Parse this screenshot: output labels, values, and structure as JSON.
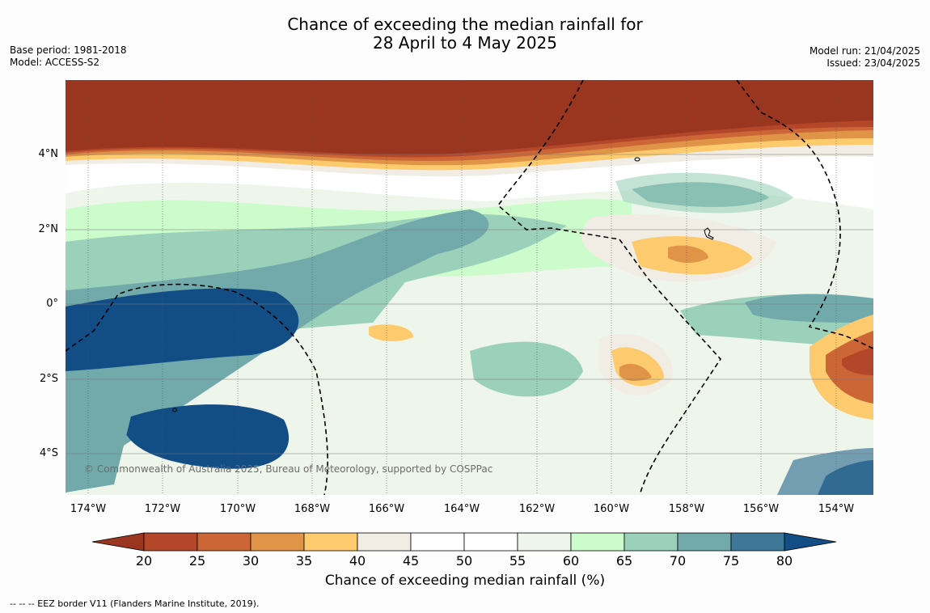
{
  "title": {
    "line1": "Chance of exceeding the median rainfall for",
    "line2": "28 April to 4 May 2025"
  },
  "meta": {
    "base_period": "Base period: 1981-2018",
    "model": "Model: ACCESS-S2",
    "model_run": "Model run: 21/04/2025",
    "issued": "Issued: 23/04/2025"
  },
  "map": {
    "lat_labels": [
      "4°N",
      "2°N",
      "0°",
      "2°S",
      "4°S"
    ],
    "lon_labels": [
      "174°W",
      "172°W",
      "170°W",
      "168°W",
      "166°W",
      "164°W",
      "162°W",
      "160°W",
      "158°W",
      "156°W",
      "154°W"
    ],
    "copyright": "© Commonwealth of Australia 2025, Bureau of Meteorology, supported by COSPPac"
  },
  "colorbar": {
    "ticks": [
      "20",
      "25",
      "30",
      "35",
      "40",
      "45",
      "50",
      "55",
      "60",
      "65",
      "70",
      "75",
      "80"
    ],
    "colors": [
      "#9a3520",
      "#b4472a",
      "#cc6636",
      "#e09448",
      "#fdcb6e",
      "#f1ede5",
      "#ffffff",
      "#ffffff",
      "#eef5ea",
      "#ccfccb",
      "#9bd0ba",
      "#72a9aa",
      "#3f7798",
      "#134d86"
    ],
    "label": "Chance of exceeding median rainfall (%)"
  },
  "footnote": "--  --  -- EEZ border V11 (Flanders Marine Institute, 2019)."
}
